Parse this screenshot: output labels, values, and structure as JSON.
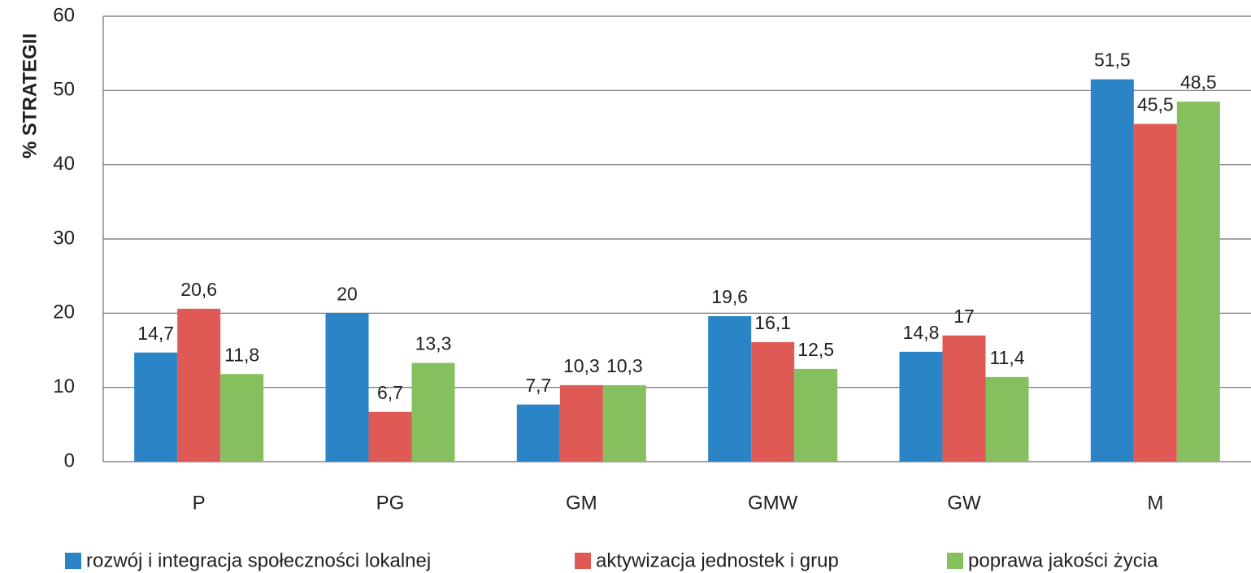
{
  "chart_data": {
    "type": "bar",
    "ylabel": "% STRATEGII",
    "categories": [
      "P",
      "PG",
      "GM",
      "GMW",
      "GW",
      "M"
    ],
    "series": [
      {
        "name": "rozwój i integracja społeczności lokalnej",
        "color": "#2a84c6",
        "values": [
          14.7,
          20,
          7.7,
          19.6,
          14.8,
          51.5
        ],
        "value_labels": [
          "14,7",
          "20",
          "7,7",
          "19,6",
          "14,8",
          "51,5"
        ]
      },
      {
        "name": "aktywizacja jednostek i grup",
        "color": "#e05a55",
        "values": [
          20.6,
          6.7,
          10.3,
          16.1,
          17,
          45.5
        ],
        "value_labels": [
          "20,6",
          "6,7",
          "10,3",
          "16,1",
          "17",
          "45,5"
        ]
      },
      {
        "name": "poprawa jakości życia",
        "color": "#86c05e",
        "values": [
          11.8,
          13.3,
          10.3,
          12.5,
          11.4,
          48.5
        ],
        "value_labels": [
          "11,8",
          "13,3",
          "10,3",
          "12,5",
          "11,4",
          "48,5"
        ]
      }
    ],
    "ylim": [
      0,
      60
    ],
    "yticks": [
      0,
      10,
      20,
      30,
      40,
      50,
      60
    ],
    "grid": true,
    "legend": "bottom"
  }
}
